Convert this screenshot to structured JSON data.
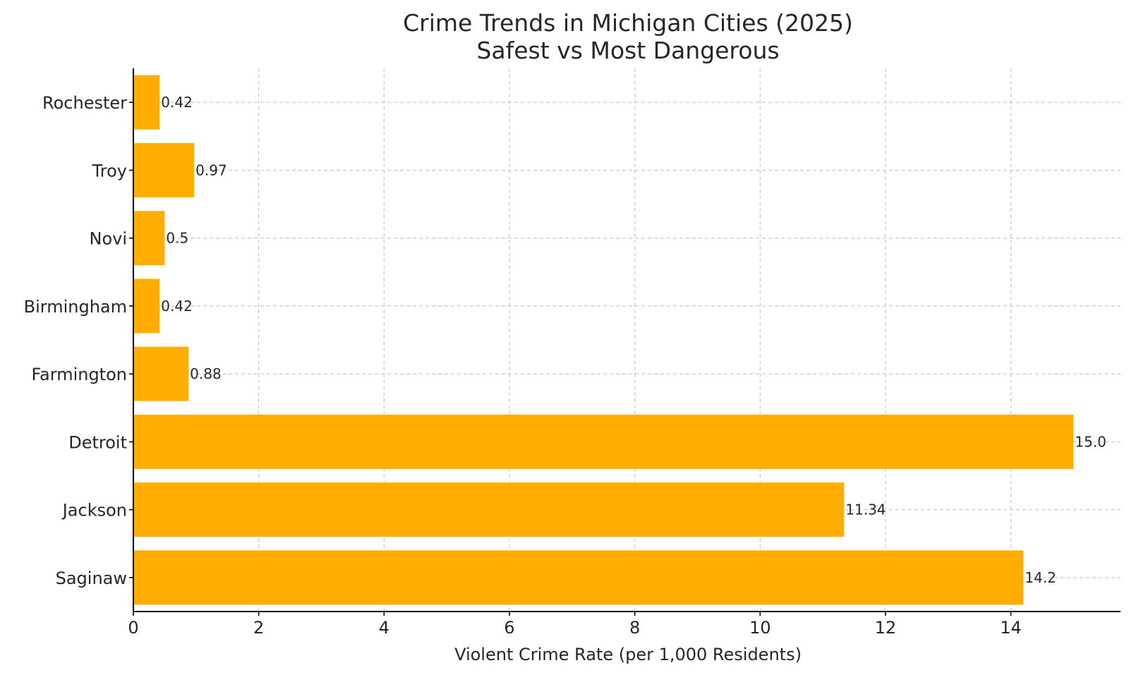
{
  "chart_data": {
    "type": "bar",
    "orientation": "horizontal",
    "title": "Crime Trends in Michigan Cities (2025)",
    "subtitle": "Safest vs Most Dangerous",
    "xlabel": "Violent Crime Rate (per 1,000 Residents)",
    "ylabel": "",
    "categories": [
      "Rochester",
      "Troy",
      "Novi",
      "Birmingham",
      "Farmington",
      "Detroit",
      "Jackson",
      "Saginaw"
    ],
    "values": [
      0.42,
      0.97,
      0.5,
      0.42,
      0.88,
      15.0,
      11.34,
      14.2
    ],
    "value_labels": [
      "0.42",
      "0.97",
      "0.5",
      "0.42",
      "0.88",
      "15.0",
      "11.34",
      "14.2"
    ],
    "xlim": [
      0,
      15.75
    ],
    "xticks": [
      0,
      2,
      4,
      6,
      8,
      10,
      12,
      14
    ],
    "xtick_labels": [
      "0",
      "2",
      "4",
      "6",
      "8",
      "10",
      "12",
      "14"
    ],
    "grid": true,
    "bar_color": "#FFAE00"
  }
}
